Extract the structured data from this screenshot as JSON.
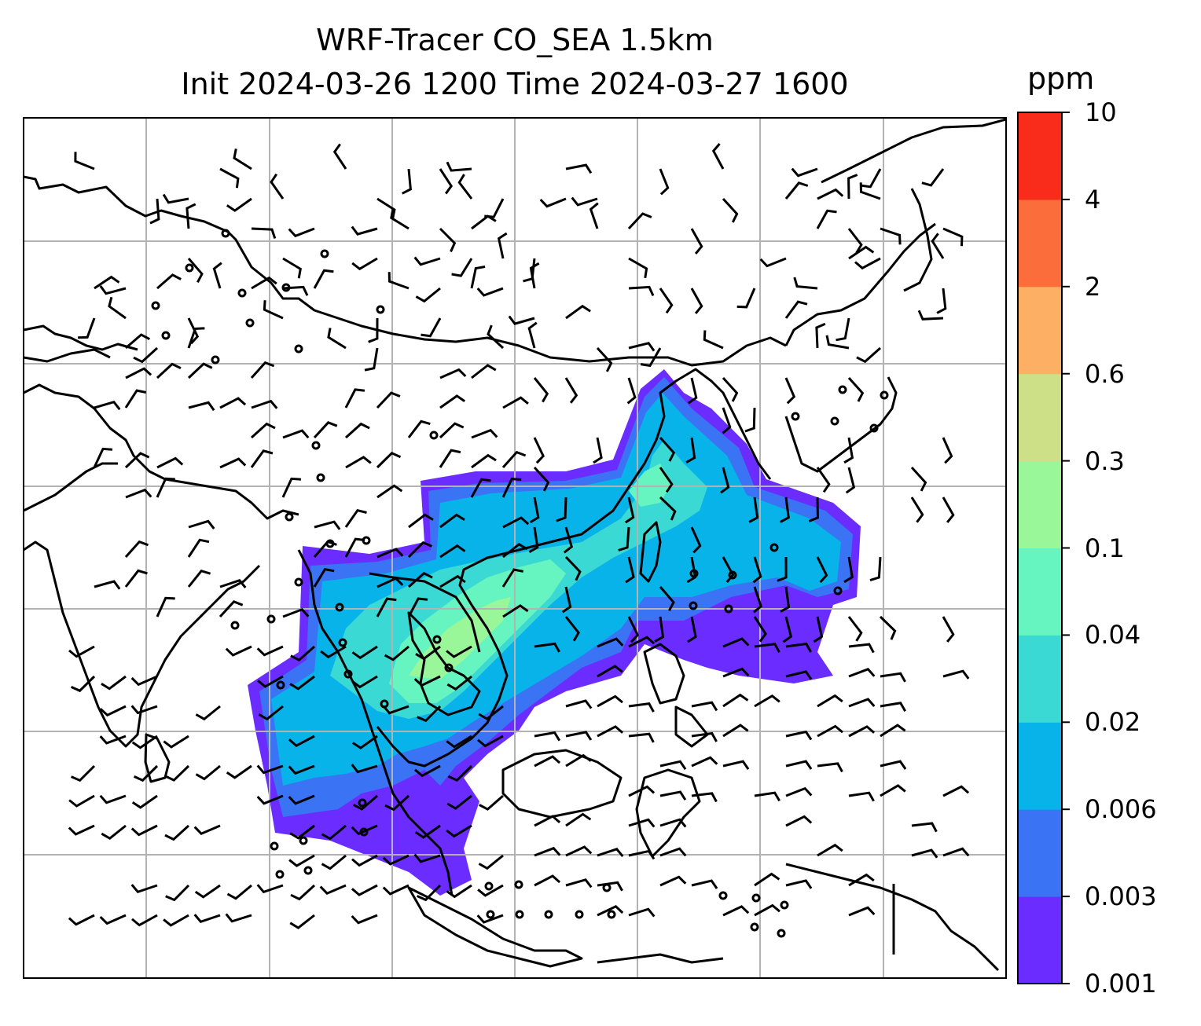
{
  "title": {
    "line1": "WRF-Tracer CO_SEA 1.5km",
    "line2": "Init 2024-03-26 1200 Time 2024-03-27 1600"
  },
  "colorbar": {
    "unit": "ppm",
    "levels": [
      "0.001",
      "0.003",
      "0.006",
      "0.02",
      "0.04",
      "0.1",
      "0.3",
      "0.6",
      "2",
      "4",
      "10"
    ],
    "colors": [
      "#6a2cff",
      "#3a74f5",
      "#08b3ea",
      "#3ad9d4",
      "#66f5c0",
      "#99f79a",
      "#cde088",
      "#fdb063",
      "#fb6d3b",
      "#f92b1a"
    ]
  },
  "map": {
    "gridlines": true,
    "layers": [
      "coastlines",
      "gridlines",
      "co-tracer-concentration",
      "wind-barbs"
    ]
  }
}
